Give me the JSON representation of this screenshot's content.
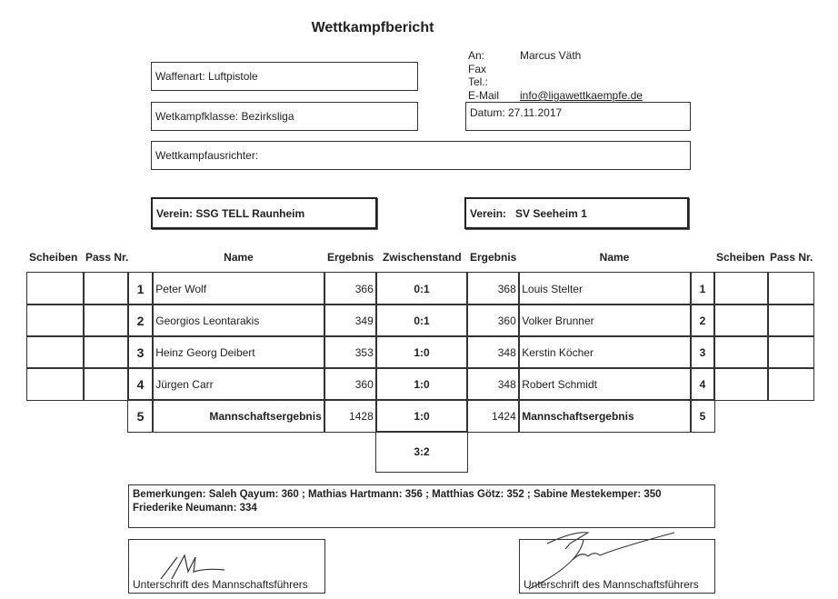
{
  "title": "Wettkampfbericht",
  "header": {
    "waffenart": "Waffenart: Luftpistole",
    "klasse": "Wetkampfklasse: Bezirksliga",
    "ausrichter": "Wettkampfausrichter:",
    "an_label": "An:",
    "an_value": "Marcus Väth",
    "fax_label": "Fax",
    "tel_label": "Tel.:",
    "email_label": "E-Mail",
    "email_value": "info@ligawettkaempfe.de",
    "datum": "Datum: 27.11.2017"
  },
  "teams": {
    "home_label": "Verein:",
    "home": "SSG TELL Raunheim",
    "away_label": "Verein:",
    "away": "SV Seeheim 1"
  },
  "columns": {
    "scheiben": "Scheiben",
    "pass": "Pass Nr.",
    "name": "Name",
    "ergebnis": "Ergebnis",
    "zwischenstand": "Zwischenstand"
  },
  "rows": [
    {
      "nr": "1",
      "home_name": "Peter Wolf",
      "home_result": "366",
      "score": "0:1",
      "away_result": "368",
      "away_name": "Louis Stelter"
    },
    {
      "nr": "2",
      "home_name": "Georgios Leontarakis",
      "home_result": "349",
      "score": "0:1",
      "away_result": "360",
      "away_name": "Volker Brunner"
    },
    {
      "nr": "3",
      "home_name": "Heinz Georg Deibert",
      "home_result": "353",
      "score": "1:0",
      "away_result": "348",
      "away_name": "Kerstin Köcher"
    },
    {
      "nr": "4",
      "home_name": "Jürgen Carr",
      "home_result": "360",
      "score": "1:0",
      "away_result": "348",
      "away_name": "Robert Schmidt"
    }
  ],
  "total": {
    "nr": "5",
    "label": "Mannschaftsergebnis",
    "home_result": "1428",
    "score": "1:0",
    "away_result": "1424"
  },
  "final_score": "3:2",
  "remarks": {
    "line1": "Bemerkungen: Saleh Qayum: 360 ; Mathias Hartmann: 356 ; Matthias Götz: 352 ; Sabine Mestekemper: 350",
    "line2": "Friederike Neumann: 334"
  },
  "signatures": {
    "left_label": "Unterschrift des Mannschaftsführers",
    "right_label": "Unterschrift des Mannschaftsführers"
  }
}
